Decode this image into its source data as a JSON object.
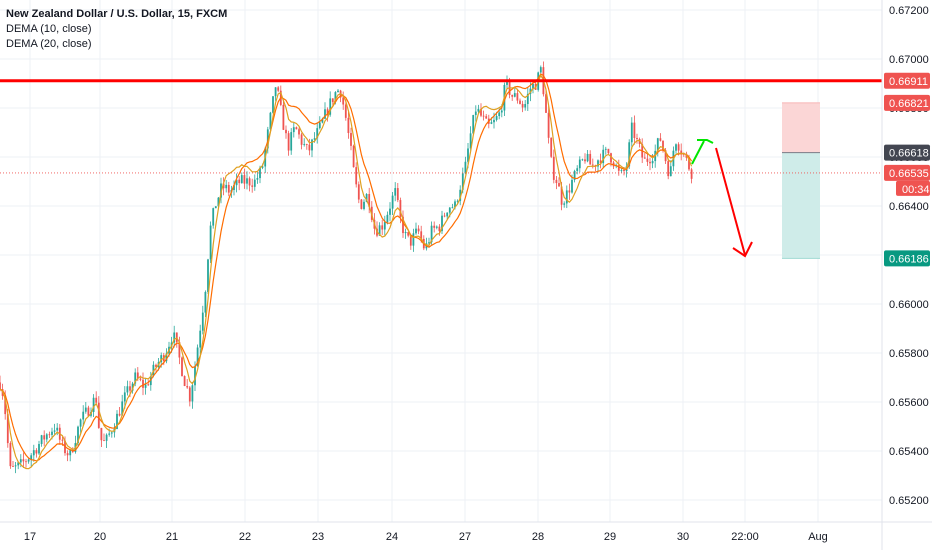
{
  "header": {
    "symbol": "New Zealand Dollar / U.S. Dollar, 15, FXCM",
    "indicator1": "DEMA (10, close)",
    "indicator2": "DEMA (20, close)"
  },
  "colors": {
    "grid": "#eef1f6",
    "candle_up": "#26a69a",
    "candle_down": "#ef5350",
    "dema10": "#e0a020",
    "dema20": "#ff6d00",
    "resistance": "#ff0000",
    "stop_zone": "#fbd6d6",
    "target_zone": "#cfece9",
    "label_red": "#ef5350",
    "label_dark": "#434651",
    "label_green": "#089981",
    "arrow_green": "#00e600",
    "arrow_red": "#ff0000"
  },
  "chart_data": {
    "type": "candlestick",
    "ylim": [
      0.651,
      0.6728
    ],
    "y_ticks": [
      "0.67200",
      "0.67000",
      "0.66800",
      "0.66600",
      "0.66400",
      "0.66200",
      "0.66000",
      "0.65800",
      "0.65600",
      "0.65400",
      "0.65200"
    ],
    "x_ticks": [
      "17",
      "20",
      "21",
      "22",
      "23",
      "24",
      "27",
      "28",
      "29",
      "30",
      "22:00",
      "Aug"
    ],
    "price_path": [
      [
        0,
        0.6568
      ],
      [
        4,
        0.6562
      ],
      [
        10,
        0.6532
      ],
      [
        20,
        0.6534
      ],
      [
        30,
        0.6538
      ],
      [
        45,
        0.6546
      ],
      [
        55,
        0.655
      ],
      [
        62,
        0.6542
      ],
      [
        70,
        0.6538
      ],
      [
        80,
        0.6552
      ],
      [
        90,
        0.6558
      ],
      [
        96,
        0.6562
      ],
      [
        100,
        0.6545
      ],
      [
        105,
        0.6543
      ],
      [
        115,
        0.6552
      ],
      [
        125,
        0.6562
      ],
      [
        135,
        0.657
      ],
      [
        145,
        0.6566
      ],
      [
        155,
        0.6574
      ],
      [
        165,
        0.658
      ],
      [
        173,
        0.6588
      ],
      [
        178,
        0.658
      ],
      [
        185,
        0.6568
      ],
      [
        190,
        0.6562
      ],
      [
        195,
        0.6575
      ],
      [
        200,
        0.659
      ],
      [
        205,
        0.6605
      ],
      [
        210,
        0.663
      ],
      [
        215,
        0.664
      ],
      [
        222,
        0.6648
      ],
      [
        230,
        0.6646
      ],
      [
        240,
        0.665
      ],
      [
        248,
        0.665
      ],
      [
        255,
        0.665
      ],
      [
        262,
        0.6655
      ],
      [
        268,
        0.667
      ],
      [
        272,
        0.668
      ],
      [
        276,
        0.669
      ],
      [
        282,
        0.6676
      ],
      [
        288,
        0.6664
      ],
      [
        295,
        0.6672
      ],
      [
        302,
        0.6666
      ],
      [
        308,
        0.6662
      ],
      [
        315,
        0.6668
      ],
      [
        320,
        0.6672
      ],
      [
        328,
        0.668
      ],
      [
        335,
        0.6686
      ],
      [
        340,
        0.6688
      ],
      [
        345,
        0.6678
      ],
      [
        350,
        0.6665
      ],
      [
        355,
        0.665
      ],
      [
        360,
        0.664
      ],
      [
        368,
        0.6645
      ],
      [
        375,
        0.663
      ],
      [
        382,
        0.6632
      ],
      [
        388,
        0.6638
      ],
      [
        395,
        0.6646
      ],
      [
        400,
        0.6635
      ],
      [
        405,
        0.6628
      ],
      [
        410,
        0.6625
      ],
      [
        418,
        0.663
      ],
      [
        425,
        0.6622
      ],
      [
        432,
        0.663
      ],
      [
        440,
        0.6632
      ],
      [
        448,
        0.664
      ],
      [
        455,
        0.664
      ],
      [
        460,
        0.6648
      ],
      [
        465,
        0.6655
      ],
      [
        470,
        0.6668
      ],
      [
        476,
        0.668
      ],
      [
        482,
        0.6676
      ],
      [
        488,
        0.6672
      ],
      [
        494,
        0.6674
      ],
      [
        500,
        0.6678
      ],
      [
        506,
        0.669
      ],
      [
        512,
        0.6685
      ],
      [
        518,
        0.6684
      ],
      [
        524,
        0.668
      ],
      [
        530,
        0.6688
      ],
      [
        536,
        0.669
      ],
      [
        541,
        0.6696
      ],
      [
        545,
        0.6682
      ],
      [
        548,
        0.6668
      ],
      [
        552,
        0.6655
      ],
      [
        557,
        0.665
      ],
      [
        562,
        0.6642
      ],
      [
        567,
        0.6645
      ],
      [
        572,
        0.665
      ],
      [
        578,
        0.6655
      ],
      [
        585,
        0.666
      ],
      [
        592,
        0.6656
      ],
      [
        600,
        0.666
      ],
      [
        608,
        0.6662
      ],
      [
        614,
        0.6658
      ],
      [
        620,
        0.6652
      ],
      [
        626,
        0.6655
      ],
      [
        632,
        0.6672
      ],
      [
        638,
        0.6665
      ],
      [
        644,
        0.6658
      ],
      [
        650,
        0.666
      ],
      [
        655,
        0.6662
      ],
      [
        660,
        0.6668
      ],
      [
        665,
        0.666
      ],
      [
        670,
        0.6652
      ],
      [
        675,
        0.6668
      ],
      [
        680,
        0.6664
      ],
      [
        685,
        0.666
      ],
      [
        690,
        0.6655
      ],
      [
        694,
        0.6652
      ]
    ],
    "resistance_price": 0.66911,
    "entry_price": 0.66618,
    "stop_price": 0.66821,
    "target_price": 0.66186,
    "last_price": 0.66535,
    "price_labels": {
      "resistance": "0.66911",
      "stop": "0.66821",
      "entry": "0.66618",
      "last": "0.66535",
      "countdown": "00:34",
      "target": "0.66186"
    }
  }
}
